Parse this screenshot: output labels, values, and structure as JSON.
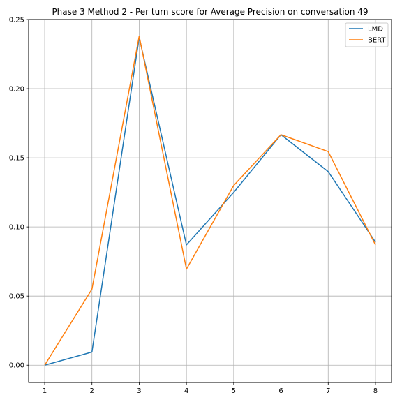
{
  "chart_data": {
    "type": "line",
    "title": "Phase 3 Method 2 - Per turn score for Average Precision on conversation 49",
    "xlabel": "",
    "ylabel": "",
    "x": [
      1,
      2,
      3,
      4,
      5,
      6,
      7,
      8
    ],
    "xticks": [
      "1",
      "2",
      "3",
      "4",
      "5",
      "6",
      "7",
      "8"
    ],
    "yticks": [
      "0.00",
      "0.05",
      "0.10",
      "0.15",
      "0.20",
      "0.25"
    ],
    "xlim": [
      0.66,
      8.34
    ],
    "ylim": [
      -0.0125,
      0.25
    ],
    "grid": true,
    "legend_position": "top-right",
    "series": [
      {
        "name": "LMD",
        "color": "#1f77b4",
        "values": [
          0.0,
          0.0095,
          0.237,
          0.087,
          0.125,
          0.1667,
          0.14,
          0.089
        ]
      },
      {
        "name": "BERT",
        "color": "#ff7f0e",
        "values": [
          0.0,
          0.055,
          0.238,
          0.0695,
          0.13,
          0.1667,
          0.1545,
          0.087
        ]
      }
    ]
  }
}
